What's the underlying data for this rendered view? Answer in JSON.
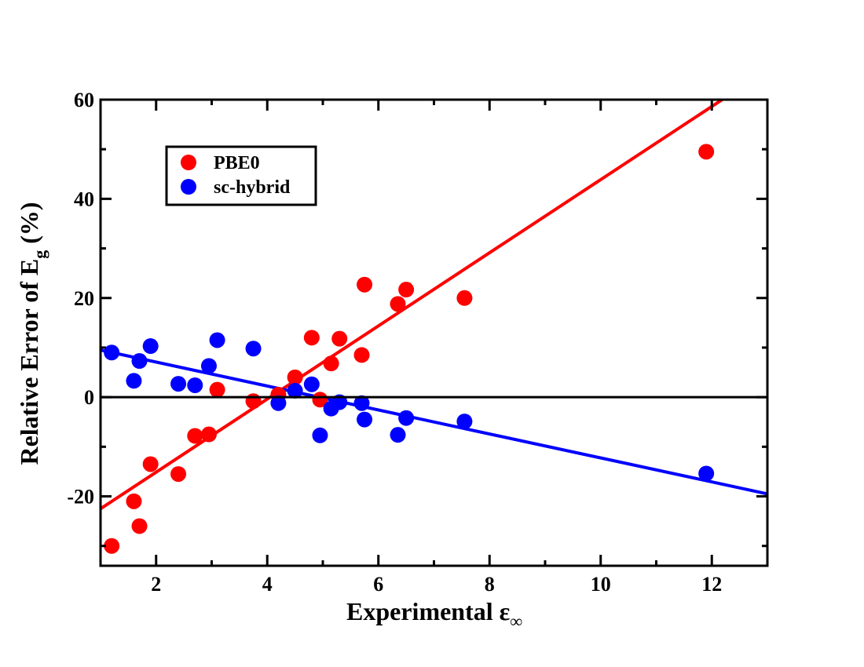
{
  "chart_data": {
    "type": "scatter",
    "xlabel": "Experimental",
    "xlabel_symbol": "ε",
    "xlabel_subscript": "∞",
    "ylabel_prefix": "Relative Error of E",
    "ylabel_subscript": "g",
    "ylabel_suffix": " (%)",
    "xlim": [
      1,
      13
    ],
    "ylim": [
      -34,
      60
    ],
    "xticks": [
      2,
      4,
      6,
      8,
      10,
      12
    ],
    "yticks": [
      -20,
      0,
      20,
      40,
      60
    ],
    "grid": false,
    "legend_position": "top-left",
    "zero_line": true,
    "series": [
      {
        "name": "PBE0",
        "color": "#ff0000",
        "points": [
          [
            1.2,
            -30.0
          ],
          [
            1.6,
            -21.0
          ],
          [
            1.7,
            -26.0
          ],
          [
            1.9,
            -13.5
          ],
          [
            2.4,
            -15.5
          ],
          [
            2.7,
            -7.8
          ],
          [
            2.95,
            -7.5
          ],
          [
            3.1,
            1.5
          ],
          [
            3.75,
            -0.8
          ],
          [
            4.2,
            0.5
          ],
          [
            4.5,
            4.0
          ],
          [
            4.8,
            12.0
          ],
          [
            4.95,
            -0.5
          ],
          [
            5.15,
            6.8
          ],
          [
            5.3,
            11.8
          ],
          [
            5.7,
            8.5
          ],
          [
            5.75,
            22.7
          ],
          [
            6.35,
            18.8
          ],
          [
            6.5,
            21.7
          ],
          [
            7.55,
            20.0
          ],
          [
            11.9,
            49.5
          ]
        ],
        "fit": {
          "x": [
            1,
            13
          ],
          "y": [
            -22.5,
            66.0
          ]
        }
      },
      {
        "name": "sc-hybrid",
        "color": "#0000ff",
        "points": [
          [
            1.2,
            9.0
          ],
          [
            1.6,
            3.3
          ],
          [
            1.7,
            7.3
          ],
          [
            1.9,
            10.3
          ],
          [
            2.4,
            2.7
          ],
          [
            2.7,
            2.4
          ],
          [
            2.95,
            6.3
          ],
          [
            3.1,
            11.5
          ],
          [
            3.75,
            9.8
          ],
          [
            4.2,
            -1.2
          ],
          [
            4.5,
            1.3
          ],
          [
            4.8,
            2.6
          ],
          [
            4.95,
            -7.7
          ],
          [
            5.15,
            -2.3
          ],
          [
            5.3,
            -1.0
          ],
          [
            5.7,
            -1.2
          ],
          [
            5.75,
            -4.5
          ],
          [
            6.35,
            -7.6
          ],
          [
            6.5,
            -4.2
          ],
          [
            7.55,
            -4.9
          ],
          [
            11.9,
            -15.4
          ]
        ],
        "fit": {
          "x": [
            1,
            13
          ],
          "y": [
            9.5,
            -19.5
          ]
        }
      }
    ]
  }
}
